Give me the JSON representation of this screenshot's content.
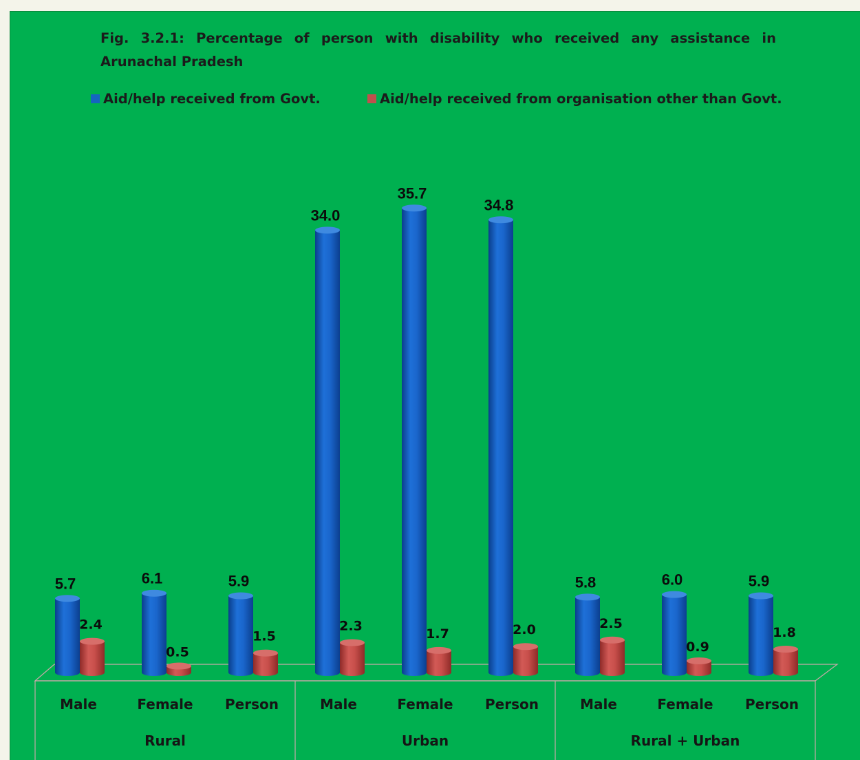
{
  "chart_data": {
    "type": "bar",
    "title": "Fig. 3.2.1: Percentage of person with disability who received any assistance in Arunachal Pradesh",
    "categories": [
      "Male",
      "Female",
      "Person",
      "Male",
      "Female",
      "Person",
      "Male",
      "Female",
      "Person"
    ],
    "groups": [
      "Rural",
      "Urban",
      "Rural + Urban"
    ],
    "series": [
      {
        "name": "Aid/help received from Govt.",
        "color": "#1565c0",
        "values": [
          5.7,
          6.1,
          5.9,
          34.0,
          35.7,
          34.8,
          5.8,
          6.0,
          5.9
        ]
      },
      {
        "name": "Aid/help received from organisation other than Govt.",
        "color": "#c0504d",
        "values": [
          2.4,
          0.5,
          1.5,
          2.3,
          1.7,
          2.0,
          2.5,
          0.9,
          1.8
        ]
      }
    ],
    "value_labels": [
      [
        "5.7",
        "6.1",
        "5.9",
        "34.0",
        "35.7",
        "34.8",
        "5.8",
        "6.0",
        "5.9"
      ],
      [
        "2.4",
        "0.5",
        "1.5",
        "2.3",
        "1.7",
        "2.0",
        "2.5",
        "0.9",
        "1.8"
      ]
    ],
    "legend_position": "top",
    "grid": false
  }
}
